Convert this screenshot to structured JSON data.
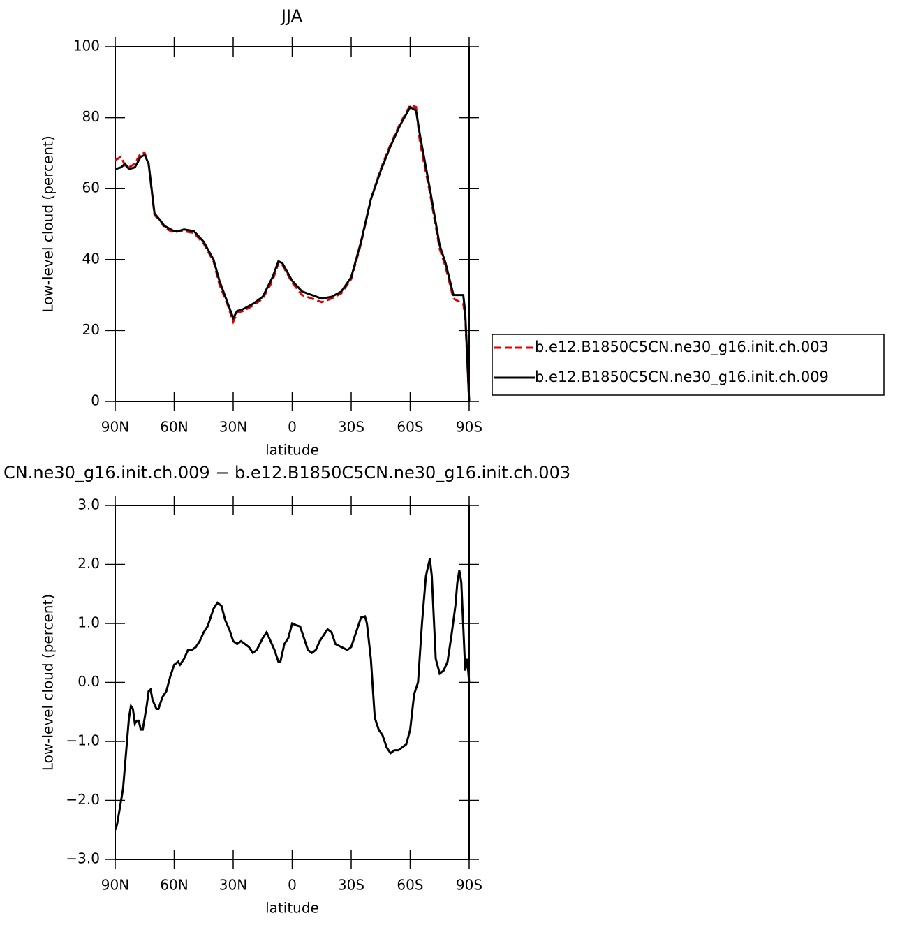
{
  "chart_data": [
    {
      "type": "line",
      "title": "JJA",
      "x_label": "latitude",
      "y_label": "Low-level cloud (percent)",
      "xlim": [
        90,
        -90
      ],
      "ylim": [
        0,
        100
      ],
      "xticks": [
        {
          "value": 90,
          "label": "90N"
        },
        {
          "value": 60,
          "label": "60N"
        },
        {
          "value": 30,
          "label": "30N"
        },
        0,
        {
          "value": -30,
          "label": "30S"
        },
        {
          "value": -60,
          "label": "60S"
        },
        {
          "value": -90,
          "label": "90S"
        }
      ],
      "yticks": [
        0,
        20,
        40,
        60,
        80,
        100
      ],
      "legend": "right",
      "x": [
        90,
        87,
        85,
        83,
        80,
        77,
        75,
        73,
        70,
        67,
        65,
        60,
        58,
        55,
        50,
        45,
        40,
        37,
        33,
        30,
        28,
        25,
        20,
        15,
        10,
        7,
        5,
        0,
        -5,
        -10,
        -15,
        -20,
        -25,
        -30,
        -35,
        -40,
        -45,
        -50,
        -55,
        -60,
        -63,
        -65,
        -70,
        -75,
        -78,
        -82,
        -87,
        -88,
        -90
      ],
      "series": [
        {
          "name": "b.e12.B1850C5CN.ne30_g16.init.ch.003",
          "color": "#e00000",
          "dashed": true,
          "values": [
            68,
            69,
            66.5,
            66,
            67,
            70,
            70,
            67,
            52.5,
            51,
            49,
            47.5,
            48,
            48,
            47.5,
            44.5,
            39.5,
            33,
            27.5,
            22.5,
            25,
            25.5,
            27,
            29,
            34,
            39,
            38.5,
            33.5,
            30,
            29,
            28,
            29,
            30.5,
            34.5,
            44.5,
            57,
            65.5,
            72.5,
            78.5,
            83.5,
            83,
            73,
            59,
            43,
            38,
            29,
            27.5,
            24,
            0
          ]
        },
        {
          "name": "b.e12.B1850C5CN.ne30_g16.init.ch.009",
          "color": "#000000",
          "dashed": false,
          "values": [
            65.5,
            66,
            67,
            65.5,
            66,
            69,
            69.5,
            67,
            53,
            51,
            49.5,
            48,
            48,
            48.5,
            48,
            45,
            40,
            34,
            28,
            23.5,
            25.5,
            26,
            27.5,
            29.5,
            35,
            39.5,
            39,
            34,
            31,
            30,
            29,
            29.5,
            31,
            35,
            45,
            57,
            65,
            72,
            78,
            83,
            82,
            75,
            60,
            44,
            39,
            30,
            30,
            25,
            0
          ]
        }
      ]
    },
    {
      "type": "line",
      "title": "CN.ne30_g16.init.ch.009 − b.e12.B1850C5CN.ne30_g16.init.ch.003",
      "x_label": "latitude",
      "y_label": "Low-level cloud (percent)",
      "xlim": [
        90,
        -90
      ],
      "ylim": [
        -3,
        3
      ],
      "xticks": [
        {
          "value": 90,
          "label": "90N"
        },
        {
          "value": 60,
          "label": "60N"
        },
        {
          "value": 30,
          "label": "30N"
        },
        0,
        {
          "value": -30,
          "label": "30S"
        },
        {
          "value": -60,
          "label": "60S"
        },
        {
          "value": -90,
          "label": "90S"
        }
      ],
      "yticks": [
        {
          "value": -3,
          "label": "−3.0"
        },
        {
          "value": -2,
          "label": "−2.0"
        },
        {
          "value": -1,
          "label": "−1.0"
        },
        {
          "value": 0,
          "label": "0.0"
        },
        {
          "value": 1,
          "label": "1.0"
        },
        {
          "value": 2,
          "label": "2.0"
        },
        {
          "value": 3,
          "label": "3.0"
        }
      ],
      "x": [
        90,
        89,
        87,
        86,
        85,
        83,
        82,
        81,
        80,
        79,
        78,
        77,
        76,
        74,
        73,
        72,
        71,
        69,
        68,
        66,
        64,
        62,
        60,
        58,
        57,
        55,
        53,
        51,
        49,
        47,
        45,
        43,
        40,
        38,
        36,
        34,
        32,
        30,
        28,
        26,
        24,
        22,
        20,
        18,
        15,
        13,
        11,
        9,
        7,
        6,
        4,
        2,
        0,
        -2,
        -4,
        -6,
        -8,
        -10,
        -12,
        -14,
        -16,
        -18,
        -20,
        -22,
        -25,
        -28,
        -30,
        -33,
        -35,
        -37,
        -38,
        -40,
        -42,
        -44,
        -46,
        -48,
        -50,
        -52,
        -54,
        -56,
        -58,
        -60,
        -62,
        -64,
        -66,
        -68,
        -70,
        -71,
        -73,
        -75,
        -77,
        -79,
        -81,
        -83,
        -84,
        -85,
        -86,
        -88,
        -89,
        -90
      ],
      "series": [
        {
          "color": "#000000",
          "dashed": false,
          "values": [
            -2.5,
            -2.4,
            -2.0,
            -1.8,
            -1.4,
            -0.6,
            -0.4,
            -0.45,
            -0.7,
            -0.65,
            -0.65,
            -0.8,
            -0.8,
            -0.4,
            -0.15,
            -0.12,
            -0.3,
            -0.45,
            -0.45,
            -0.25,
            -0.15,
            0.1,
            0.3,
            0.35,
            0.3,
            0.4,
            0.55,
            0.55,
            0.6,
            0.7,
            0.85,
            0.95,
            1.25,
            1.35,
            1.3,
            1.05,
            0.9,
            0.7,
            0.65,
            0.7,
            0.65,
            0.6,
            0.5,
            0.55,
            0.75,
            0.85,
            0.7,
            0.55,
            0.35,
            0.35,
            0.65,
            0.75,
            1.0,
            0.97,
            0.95,
            0.75,
            0.55,
            0.5,
            0.55,
            0.7,
            0.8,
            0.9,
            0.85,
            0.65,
            0.6,
            0.55,
            0.6,
            0.9,
            1.1,
            1.12,
            1.0,
            0.4,
            -0.6,
            -0.8,
            -0.9,
            -1.1,
            -1.2,
            -1.15,
            -1.15,
            -1.1,
            -1.05,
            -0.8,
            -0.2,
            0.0,
            1.0,
            1.8,
            2.1,
            1.8,
            0.4,
            0.15,
            0.2,
            0.35,
            0.8,
            1.3,
            1.7,
            1.9,
            1.7,
            0.2,
            0.4,
            0.0
          ]
        }
      ]
    }
  ]
}
